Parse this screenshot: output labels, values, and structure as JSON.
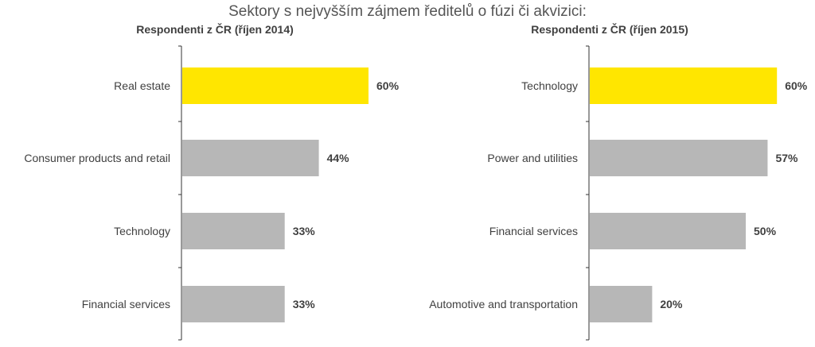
{
  "title": "Sektory s nejvyšším zájmem ředitelů o fúzi či akvizici:",
  "colors": {
    "highlight": "#ffe600",
    "default": "#b7b7b7",
    "axis": "#333333"
  },
  "chart_data": [
    {
      "type": "bar",
      "orientation": "horizontal",
      "title": "Respondenti z ČR (říjen 2014)",
      "categories": [
        "Real estate",
        "Consumer products and retail",
        "Technology",
        "Financial services"
      ],
      "values": [
        60,
        44,
        33,
        33
      ],
      "value_labels": [
        "60%",
        "44%",
        "33%",
        "33%"
      ],
      "highlight_index": 0,
      "unit": "%",
      "xlim": [
        0,
        100
      ]
    },
    {
      "type": "bar",
      "orientation": "horizontal",
      "title": "Respondenti z ČR (říjen 2015)",
      "categories": [
        "Technology",
        "Power and utilities",
        "Financial services",
        "Automotive and transportation"
      ],
      "values": [
        60,
        57,
        50,
        20
      ],
      "value_labels": [
        "60%",
        "57%",
        "50%",
        "20%"
      ],
      "highlight_index": 0,
      "unit": "%",
      "xlim": [
        0,
        100
      ]
    }
  ]
}
